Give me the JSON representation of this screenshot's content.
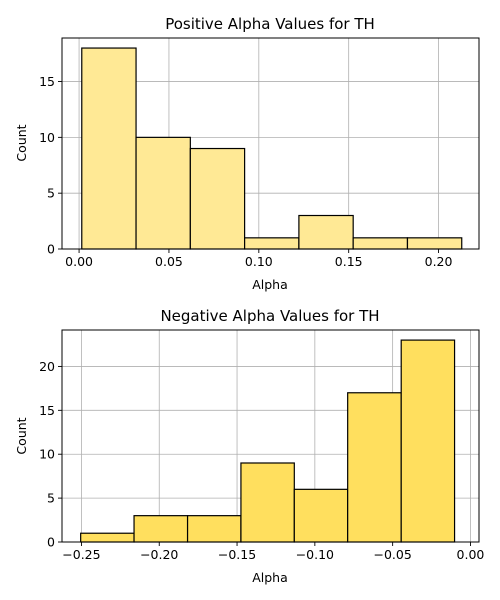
{
  "chart_data": [
    {
      "type": "bar",
      "title": "Positive Alpha Values for TH",
      "xlabel": "Alpha",
      "ylabel": "Count",
      "bar_color": "#ffe995",
      "edge_color": "#000000",
      "xlim": [
        -0.0095,
        0.2225
      ],
      "ylim": [
        0,
        18.9
      ],
      "xticks": [
        0.0,
        0.05,
        0.1,
        0.15,
        0.2
      ],
      "xtick_labels": [
        "0.00",
        "0.05",
        "0.10",
        "0.15",
        "0.20"
      ],
      "yticks": [
        0,
        5,
        10,
        15
      ],
      "ytick_labels": [
        "0",
        "5",
        "10",
        "15"
      ],
      "grid": true,
      "bins": [
        {
          "x0": 0.0015,
          "x1": 0.0317,
          "count": 18
        },
        {
          "x0": 0.0317,
          "x1": 0.0619,
          "count": 10
        },
        {
          "x0": 0.0619,
          "x1": 0.0921,
          "count": 9
        },
        {
          "x0": 0.0921,
          "x1": 0.1223,
          "count": 1
        },
        {
          "x0": 0.1223,
          "x1": 0.1525,
          "count": 3
        },
        {
          "x0": 0.1525,
          "x1": 0.1827,
          "count": 1
        },
        {
          "x0": 0.1827,
          "x1": 0.2129,
          "count": 1
        }
      ]
    },
    {
      "type": "bar",
      "title": "Negative Alpha Values for TH",
      "xlabel": "Alpha",
      "ylabel": "Count",
      "bar_color": "#ffdf5e",
      "edge_color": "#000000",
      "xlim": [
        -0.2625,
        0.0055
      ],
      "ylim": [
        0,
        24.15
      ],
      "xticks": [
        -0.25,
        -0.2,
        -0.15,
        -0.1,
        -0.05,
        0.0
      ],
      "xtick_labels": [
        "−0.25",
        "−0.20",
        "−0.15",
        "−0.10",
        "−0.05",
        "0.00"
      ],
      "yticks": [
        0,
        5,
        10,
        15,
        20
      ],
      "ytick_labels": [
        "0",
        "5",
        "10",
        "15",
        "20"
      ],
      "grid": true,
      "bins": [
        {
          "x0": -0.2505,
          "x1": -0.2162,
          "count": 1
        },
        {
          "x0": -0.2162,
          "x1": -0.1818,
          "count": 3
        },
        {
          "x0": -0.1818,
          "x1": -0.1475,
          "count": 3
        },
        {
          "x0": -0.1475,
          "x1": -0.1132,
          "count": 9
        },
        {
          "x0": -0.1132,
          "x1": -0.0789,
          "count": 6
        },
        {
          "x0": -0.0789,
          "x1": -0.0445,
          "count": 17
        },
        {
          "x0": -0.0445,
          "x1": -0.0102,
          "count": 23
        }
      ]
    }
  ]
}
